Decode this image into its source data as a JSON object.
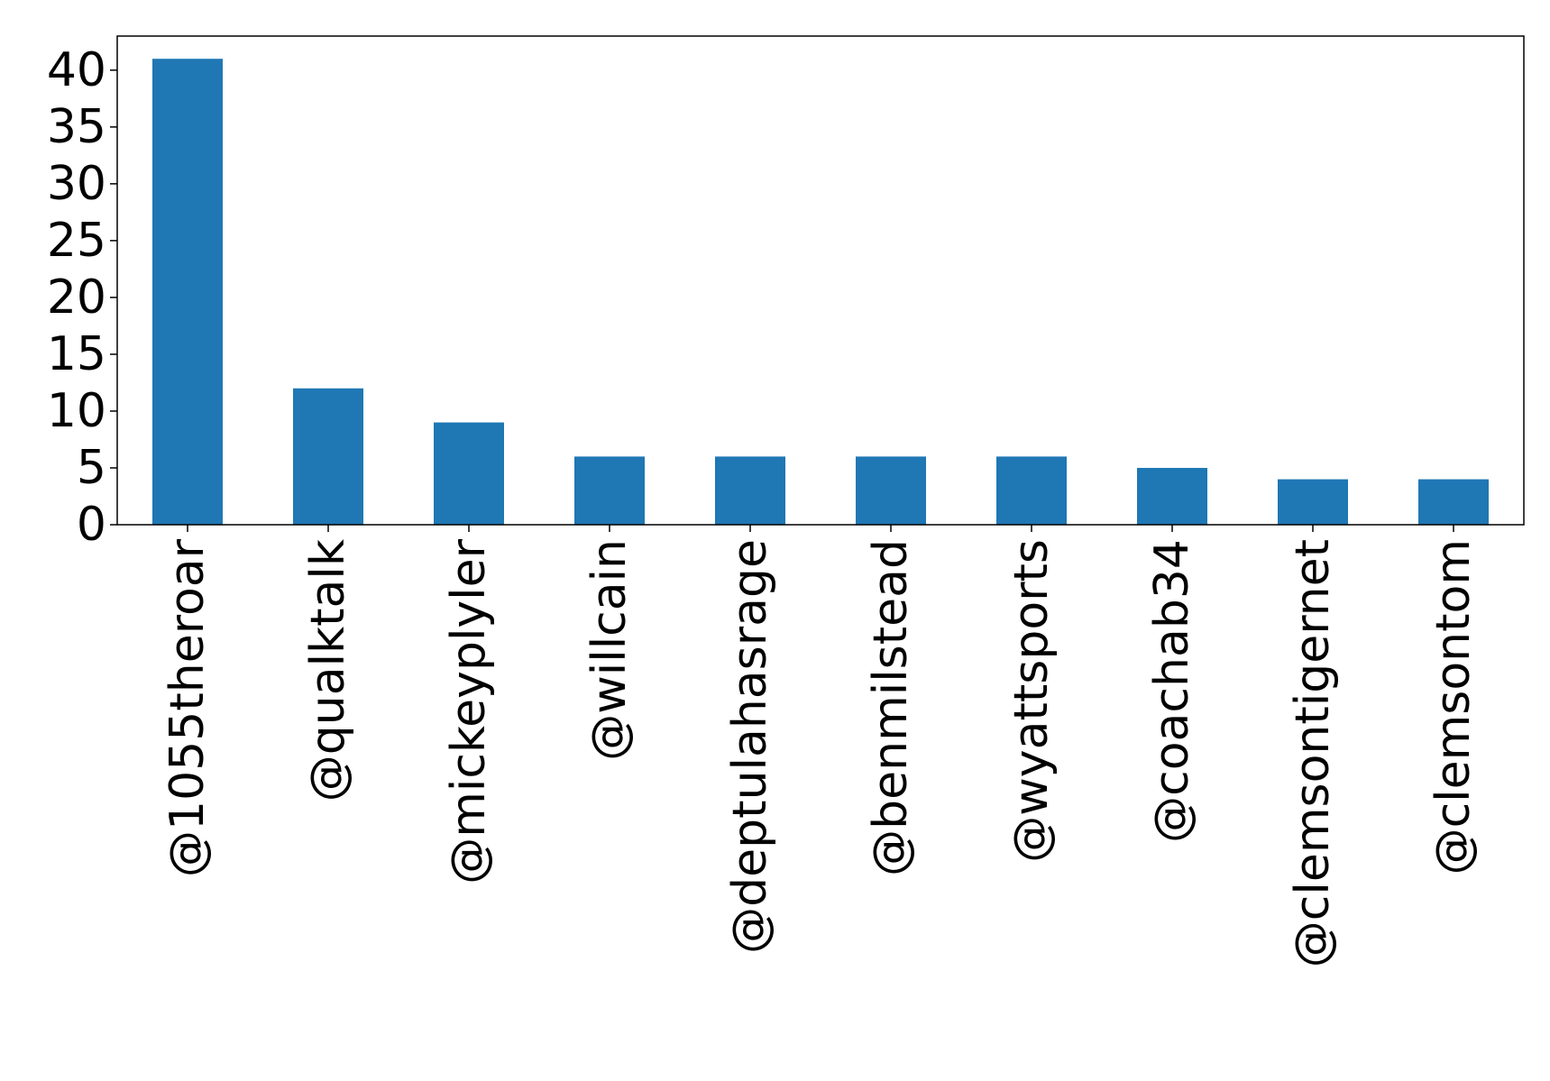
{
  "chart_data": {
    "type": "bar",
    "title": "",
    "xlabel": "",
    "ylabel": "",
    "categories": [
      "@1055theroar",
      "@qualktalk",
      "@mickeyplyler",
      "@willcain",
      "@deptulahasrage",
      "@benmilstead",
      "@wyattsports",
      "@coachab34",
      "@clemsontigernet",
      "@clemsontom"
    ],
    "values": [
      41,
      12,
      9,
      6,
      6,
      6,
      6,
      5,
      4,
      4
    ],
    "ylim": [
      0,
      43
    ],
    "yticks": [
      0,
      5,
      10,
      15,
      20,
      25,
      30,
      35,
      40
    ],
    "grid": false,
    "bar_color": "#1f77b4"
  }
}
